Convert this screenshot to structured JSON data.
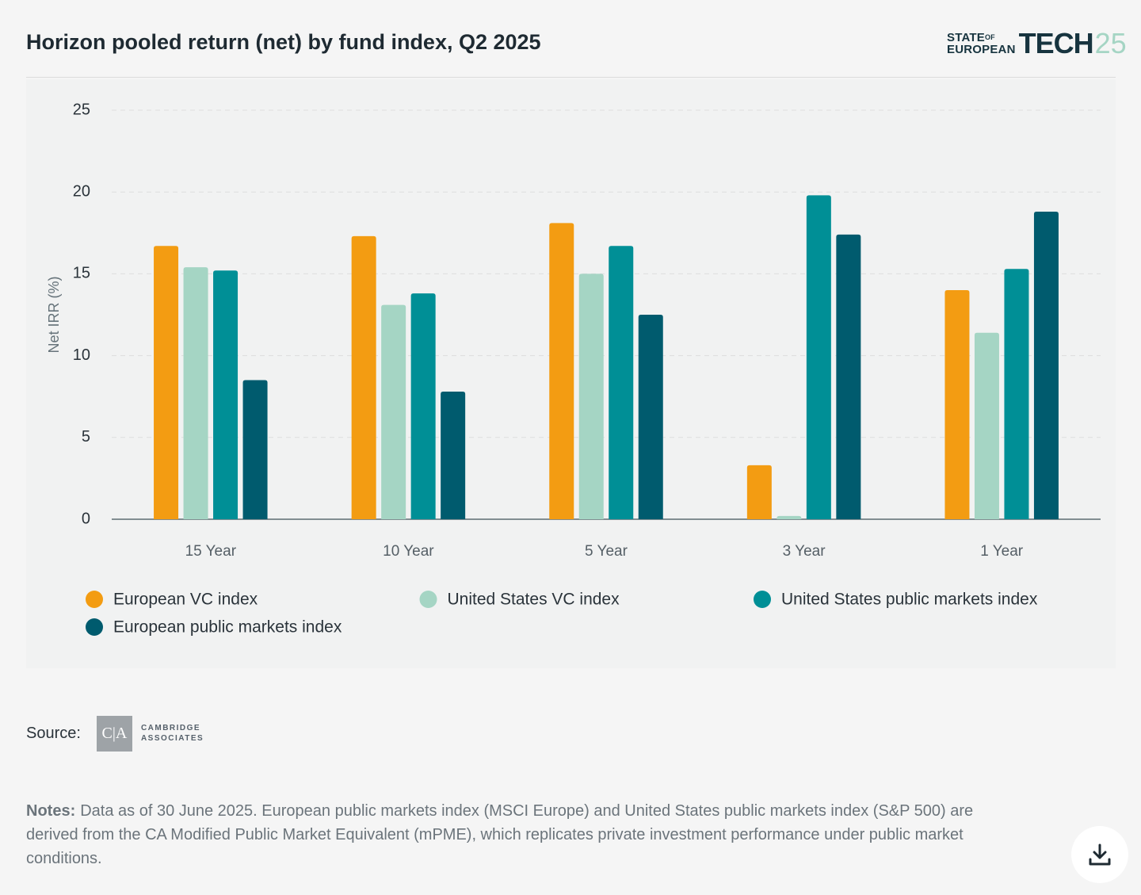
{
  "header": {
    "logo": {
      "state": "STATE",
      "of": "OF",
      "european": "EUROPEAN",
      "tech": "TECH",
      "year": "25"
    }
  },
  "chart_data": {
    "type": "bar",
    "title": "Horizon pooled return (net) by fund index, Q2 2025",
    "y_label": "Net IRR (%)",
    "categories": [
      "15 Year",
      "10 Year",
      "5 Year",
      "3 Year",
      "1 Year"
    ],
    "series": [
      {
        "name": "European VC index",
        "color": "#f39c12",
        "values": [
          16.7,
          17.3,
          18.1,
          3.3,
          14.0
        ]
      },
      {
        "name": "United States VC index",
        "color": "#a5d5c4",
        "values": [
          15.4,
          13.1,
          15.0,
          0.2,
          11.4
        ]
      },
      {
        "name": "United States public markets index",
        "color": "#008f96",
        "values": [
          15.2,
          13.8,
          16.7,
          19.8,
          15.3
        ]
      },
      {
        "name": "European public markets index",
        "color": "#005b6e",
        "values": [
          8.5,
          7.8,
          12.5,
          17.4,
          18.8
        ]
      }
    ],
    "ylim": [
      0,
      25
    ],
    "yticks": [
      0,
      5,
      10,
      15,
      20,
      25
    ],
    "grid": true,
    "legend": "bottom"
  },
  "source": {
    "label": "Source:",
    "logo_mark": "C|A",
    "name": [
      "CAMBRIDGE",
      "ASSOCIATES"
    ]
  },
  "notes": {
    "label": "Notes:",
    "text": "Data as of 30 June 2025. European public markets index (MSCI Europe) and United States public markets index (S&P 500) are derived from the CA Modified Public Market Equivalent (mPME), which replicates private investment performance under public market conditions."
  }
}
